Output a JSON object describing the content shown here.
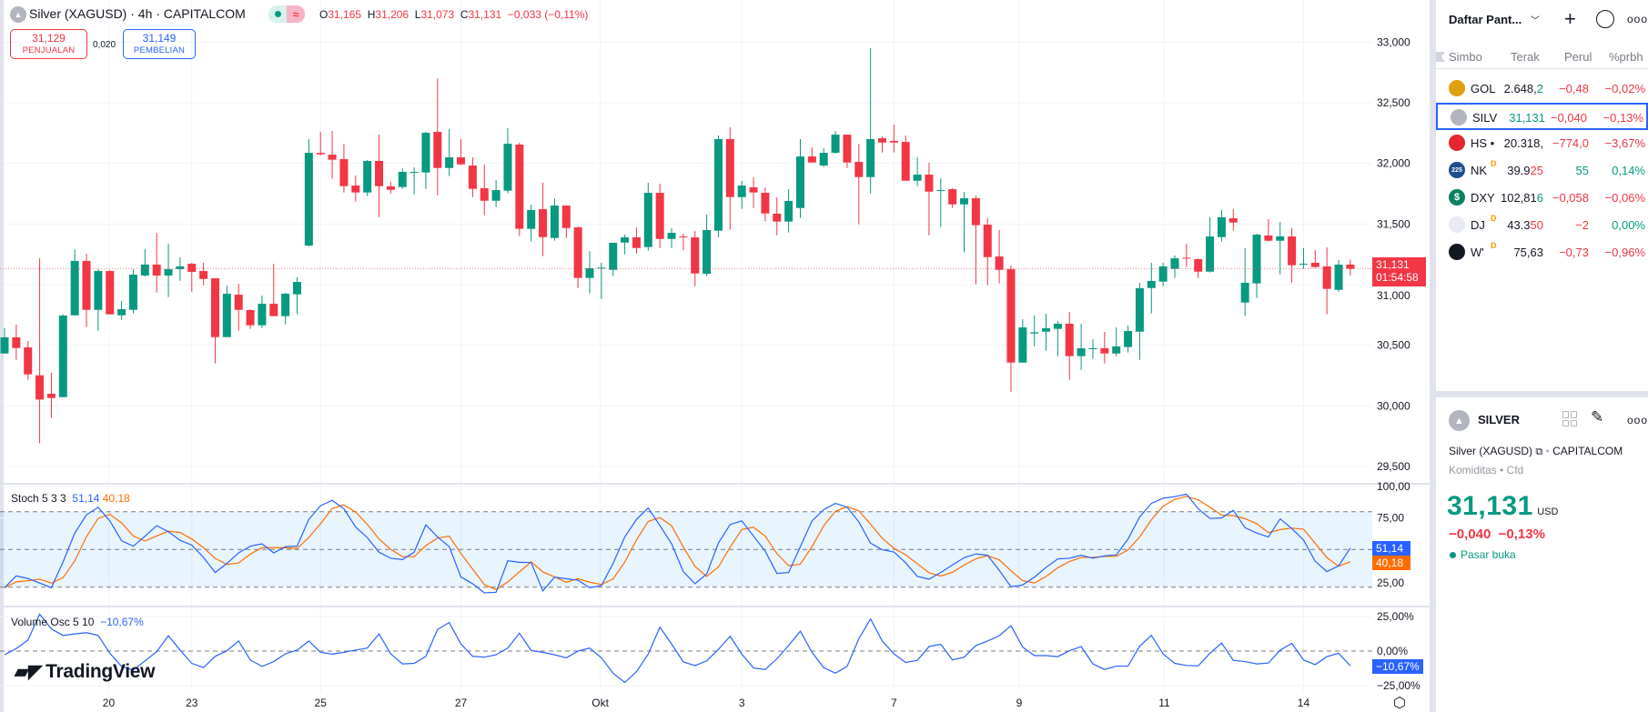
{
  "header": {
    "title": "Silver (XAGUSD) · 4h · CAPITALCOM",
    "market_badge": "≈",
    "ohlc": {
      "o_label": "O",
      "o": "31,165",
      "h_label": "H",
      "h": "31,206",
      "l_label": "L",
      "l": "31,073",
      "c_label": "C",
      "c": "31,131",
      "change": "−0,033 (−0,11%)"
    },
    "sell": {
      "price": "31,129",
      "label": "PENJUALAN"
    },
    "spread": "0,020",
    "buy": {
      "price": "31,149",
      "label": "PEMBELIAN"
    }
  },
  "colors": {
    "up": "#089981",
    "down": "#F23645",
    "k": "#2962FF",
    "d": "#FF6D00",
    "grid": "#F0F3FA"
  },
  "price_axis": {
    "ticks": [
      {
        "v": 33000,
        "t": "33,000"
      },
      {
        "v": 32500,
        "t": "32,500"
      },
      {
        "v": 32000,
        "t": "32,000"
      },
      {
        "v": 31500,
        "t": "31,500"
      },
      {
        "v": 31000,
        "t": "31,000"
      },
      {
        "v": 30500,
        "t": "30,500"
      },
      {
        "v": 30000,
        "t": "30,000"
      },
      {
        "v": 29500,
        "t": "29,500"
      }
    ],
    "last_price": "31,131",
    "countdown": "01:54:58",
    "last_value": 31131
  },
  "stoch": {
    "label": "Stoch 5 3 3",
    "k_value": "51,14",
    "d_value": "40,18",
    "d_period": 3,
    "ticks": [
      {
        "v": 100,
        "t": "100,00"
      },
      {
        "v": 75,
        "t": "75,00"
      },
      {
        "v": 25,
        "t": "25,00"
      }
    ],
    "bands": [
      80,
      50,
      20
    ],
    "k": [
      19.6,
      29,
      26.9,
      23.3,
      19.6,
      40.1,
      63,
      77.5,
      83.5,
      72.7,
      56.9,
      52.6,
      60.5,
      68.9,
      64.1,
      57.3,
      53.4,
      43.7,
      31.7,
      38.9,
      47.3,
      52.6,
      54.5,
      47.3,
      52.2,
      52.6,
      73.9,
      84.7,
      89,
      82.3,
      67.8,
      59.4,
      47.8,
      43,
      42,
      47.8,
      69.5,
      59.9,
      52.2,
      28.1,
      22.8,
      15.5,
      16,
      41,
      39.8,
      39.6,
      17.1,
      28,
      26.8,
      25.6,
      19.6,
      21.3,
      38.9,
      59.9,
      73.9,
      83,
      69,
      54.5,
      32.4,
      22.8,
      30.5,
      55,
      69.8,
      72.7,
      60.6,
      48.6,
      31,
      31.7,
      52.2,
      72.7,
      81.6,
      86.6,
      83.5,
      71.9,
      55,
      49.8,
      48,
      39.4,
      28.6,
      26.4,
      31.7,
      37.7,
      43.5,
      46.4,
      45.4,
      33.4,
      20.4,
      21.8,
      28,
      35.8,
      42.5,
      43,
      45.4,
      43,
      44.9,
      45.7,
      58.2,
      75.8,
      86.6,
      90.7,
      91.9,
      93.9,
      82.3,
      74.6,
      75,
      81.1,
      67.3,
      63,
      59.9,
      74.3,
      66.6,
      57.5,
      40.6,
      32.4,
      37,
      51.14
    ]
  },
  "volosc": {
    "label": "Volume Osc 5 10",
    "value": "−10,67%",
    "ticks": [
      {
        "v": 25,
        "t": "25,00%"
      },
      {
        "v": 0,
        "t": "0,00%"
      },
      {
        "v": -25,
        "t": "−25,00%"
      }
    ],
    "values": [
      -2.7,
      1.8,
      8,
      26.7,
      16,
      11.3,
      12.4,
      13.3,
      11.3,
      -1.6,
      -11.1,
      -13.8,
      -7.1,
      -0.4,
      11.1,
      0.7,
      -8.9,
      -12,
      -3.8,
      0.2,
      7.3,
      -6.4,
      -11.1,
      -7.6,
      -2,
      0.7,
      7.3,
      -0.9,
      -2.2,
      -0.9,
      0.7,
      2.2,
      12.4,
      -2,
      -9.3,
      -8.9,
      -3.8,
      15.6,
      20.7,
      5.1,
      -3.8,
      -4.4,
      -2.7,
      2.2,
      12.9,
      0.4,
      -0.9,
      -2.7,
      -4.9,
      0,
      2.2,
      -4.9,
      -16,
      -22.7,
      -14.9,
      -2.2,
      17.3,
      5.1,
      -7.8,
      -10.5,
      -7.1,
      1.3,
      10.7,
      -2.2,
      -12.2,
      -13.3,
      -5.6,
      4,
      14.4,
      -0.9,
      -12,
      -16,
      -11.1,
      8.9,
      23.3,
      7.3,
      -2,
      -8.2,
      -6.7,
      3.3,
      4.9,
      -6.4,
      -4.4,
      4,
      7.3,
      11.1,
      18.4,
      2.9,
      -3.3,
      -3.3,
      -4,
      0.2,
      3.3,
      -9.3,
      -13.3,
      -10.9,
      -10.9,
      3.6,
      11.3,
      -2,
      -8.9,
      -10.4,
      -10.7,
      -1.6,
      5.8,
      -6.7,
      -7.6,
      -9.3,
      -8.7,
      0.7,
      5.6,
      -6.4,
      -9.8,
      -4,
      -1.6,
      -10.67
    ]
  },
  "time_axis": [
    {
      "i": 8.9,
      "t": "20"
    },
    {
      "i": 16,
      "t": "23"
    },
    {
      "i": 27,
      "t": "25"
    },
    {
      "i": 39,
      "t": "27"
    },
    {
      "i": 50.9,
      "t": "Okt"
    },
    {
      "i": 63,
      "t": "3"
    },
    {
      "i": 76,
      "t": "7"
    },
    {
      "i": 86.7,
      "t": "9"
    },
    {
      "i": 99.1,
      "t": "11"
    },
    {
      "i": 111,
      "t": "14"
    }
  ],
  "branding": "TradingView",
  "candles": [
    [
      30432,
      30640,
      30432,
      30565
    ],
    [
      30565,
      30670,
      30380,
      30477
    ],
    [
      30482,
      30535,
      30215,
      30260
    ],
    [
      30252,
      31217,
      29692,
      30052
    ],
    [
      30100,
      30272,
      29902,
      30065
    ],
    [
      30072,
      30755,
      30072,
      30745
    ],
    [
      30747,
      31292,
      30747,
      31195
    ],
    [
      31195,
      31255,
      30650,
      30792
    ],
    [
      30792,
      31127,
      30620,
      31112
    ],
    [
      31112,
      31120,
      30755,
      30755
    ],
    [
      30747,
      30865,
      30710,
      30797
    ],
    [
      30792,
      31127,
      30762,
      31082
    ],
    [
      31075,
      31292,
      31067,
      31165
    ],
    [
      31165,
      31427,
      30935,
      31075
    ],
    [
      31075,
      31337,
      30897,
      31127
    ],
    [
      31127,
      31225,
      31032,
      31150
    ],
    [
      31172,
      31180,
      30942,
      31105
    ],
    [
      31112,
      31180,
      30995,
      31047
    ],
    [
      31052,
      31052,
      30350,
      30567
    ],
    [
      30567,
      30992,
      30567,
      30925
    ],
    [
      30917,
      31007,
      30620,
      30792
    ],
    [
      30790,
      30797,
      30635,
      30665
    ],
    [
      30665,
      30910,
      30642,
      30842
    ],
    [
      30842,
      31172,
      30740,
      30740
    ],
    [
      30740,
      30932,
      30672,
      30925
    ],
    [
      30920,
      31060,
      30755,
      31022
    ],
    [
      31322,
      32200,
      31315,
      32087
    ],
    [
      32087,
      32260,
      32067,
      32075
    ],
    [
      32072,
      32267,
      31872,
      32030
    ],
    [
      32035,
      32162,
      31760,
      31812
    ],
    [
      31817,
      31900,
      31685,
      31760
    ],
    [
      31760,
      32027,
      31730,
      32020
    ],
    [
      32020,
      32237,
      31557,
      31812
    ],
    [
      31810,
      31847,
      31752,
      31782
    ],
    [
      31805,
      31960,
      31790,
      31930
    ],
    [
      31925,
      31967,
      31745,
      31930
    ],
    [
      31925,
      32260,
      31790,
      32252
    ],
    [
      32260,
      32702,
      31737,
      31962
    ],
    [
      31962,
      32282,
      31895,
      32050
    ],
    [
      32050,
      32200,
      31985,
      31992
    ],
    [
      31982,
      32050,
      31722,
      31790
    ],
    [
      31795,
      31990,
      31572,
      31692
    ],
    [
      31692,
      31862,
      31640,
      31780
    ],
    [
      31775,
      32290,
      31752,
      32162
    ],
    [
      32155,
      32170,
      31400,
      31460
    ],
    [
      31460,
      31660,
      31355,
      31615
    ],
    [
      31622,
      31840,
      31235,
      31392
    ],
    [
      31385,
      31712,
      31362,
      31652
    ],
    [
      31652,
      31652,
      31385,
      31467
    ],
    [
      31472,
      31480,
      30972,
      31055
    ],
    [
      31055,
      31277,
      30927,
      31135
    ],
    [
      31135,
      31180,
      30882,
      31140
    ],
    [
      31122,
      31345,
      31070,
      31345
    ],
    [
      31347,
      31412,
      31250,
      31390
    ],
    [
      31390,
      31472,
      31257,
      31302
    ],
    [
      31310,
      31840,
      31280,
      31757
    ],
    [
      31757,
      31832,
      31302,
      31377
    ],
    [
      31377,
      31465,
      31302,
      31427
    ],
    [
      31397,
      31420,
      31285,
      31392
    ],
    [
      31390,
      31442,
      30987,
      31092
    ],
    [
      31090,
      31577,
      31070,
      31450
    ],
    [
      31445,
      32230,
      31392,
      32200
    ],
    [
      32200,
      32297,
      31452,
      31722
    ],
    [
      31722,
      31855,
      31625,
      31817
    ],
    [
      31802,
      31885,
      31632,
      31760
    ],
    [
      31757,
      31802,
      31520,
      31587
    ],
    [
      31585,
      31720,
      31407,
      31520
    ],
    [
      31520,
      31787,
      31430,
      31690
    ],
    [
      31632,
      32200,
      31550,
      32057
    ],
    [
      32057,
      32132,
      32007,
      32007
    ],
    [
      31982,
      32125,
      31970,
      32087
    ],
    [
      32087,
      32267,
      32080,
      32237
    ],
    [
      32237,
      32237,
      31962,
      32007
    ],
    [
      32012,
      32162,
      31497,
      31887
    ],
    [
      31887,
      32950,
      31752,
      32200
    ],
    [
      32207,
      32222,
      32090,
      32172
    ],
    [
      32185,
      32320,
      32090,
      32172
    ],
    [
      32177,
      32230,
      31857,
      31857
    ],
    [
      31857,
      32050,
      31812,
      31907
    ],
    [
      31907,
      32005,
      31407,
      31767
    ],
    [
      31775,
      31877,
      31475,
      31780
    ],
    [
      31787,
      31795,
      31632,
      31662
    ],
    [
      31662,
      31765,
      31265,
      31712
    ],
    [
      31712,
      31735,
      31002,
      31490
    ],
    [
      31495,
      31547,
      30995,
      31227
    ],
    [
      31232,
      31450,
      31010,
      31122
    ],
    [
      31127,
      31157,
      30117,
      30357
    ],
    [
      30357,
      30715,
      30357,
      30647
    ],
    [
      30597,
      30745,
      30492,
      30607
    ],
    [
      30612,
      30760,
      30455,
      30640
    ],
    [
      30635,
      30700,
      30410,
      30677
    ],
    [
      30677,
      30775,
      30215,
      30410
    ],
    [
      30410,
      30677,
      30297,
      30475
    ],
    [
      30470,
      30550,
      30387,
      30475
    ],
    [
      30475,
      30610,
      30350,
      30432
    ],
    [
      30432,
      30647,
      30410,
      30490
    ],
    [
      30485,
      30662,
      30440,
      30617
    ],
    [
      30612,
      31015,
      30380,
      30970
    ],
    [
      30972,
      31180,
      30762,
      31030
    ],
    [
      31025,
      31180,
      30987,
      31150
    ],
    [
      31130,
      31240,
      31055,
      31217
    ],
    [
      31222,
      31337,
      31145,
      31220
    ],
    [
      31210,
      31217,
      31055,
      31107
    ],
    [
      31107,
      31555,
      31100,
      31397
    ],
    [
      31392,
      31615,
      31355,
      31555
    ],
    [
      31547,
      31622,
      31445,
      31512
    ],
    [
      30852,
      31300,
      30740,
      31015
    ],
    [
      31010,
      31420,
      30890,
      31412
    ],
    [
      31405,
      31540,
      31355,
      31362
    ],
    [
      31362,
      31517,
      31085,
      31397
    ],
    [
      31397,
      31465,
      31017,
      31160
    ],
    [
      31167,
      31300,
      31130,
      31172
    ],
    [
      31180,
      31285,
      31137,
      31145
    ],
    [
      31150,
      31307,
      30755,
      30965
    ],
    [
      30957,
      31202,
      30942,
      31165
    ],
    [
      31165,
      31206,
      31073,
      31131
    ]
  ],
  "watchlist": {
    "title": "Daftar Pant...",
    "columns": [
      "Simbo",
      "Terak",
      "Perul",
      "%prbh"
    ],
    "rows": [
      {
        "sym": "GOL",
        "flag": "",
        "price": "2.648,",
        "tail": "2",
        "tail_dir": "up",
        "chg": "−0,48",
        "pct": "−0,02%",
        "dir": "down",
        "icon_color": "#E0A10E",
        "icon": "gold-bar-icon",
        "icon_text": ""
      },
      {
        "sym": "SILVI",
        "flag": "",
        "price": "",
        "tail": "31,131",
        "tail_dir": "up",
        "chg": "−0,040",
        "pct": "−0,13%",
        "dir": "down",
        "icon_color": "#B2B5BE",
        "icon": "silver-bar-icon",
        "icon_text": "",
        "selected": true
      },
      {
        "sym": "HS •",
        "flag": "",
        "price": "20.318,",
        "tail": "",
        "tail_dir": "",
        "chg": "−774,0",
        "pct": "−3,67%",
        "dir": "down",
        "icon_color": "#E3262F",
        "icon": "hang-seng-icon",
        "icon_text": ""
      },
      {
        "sym": "NK",
        "flag": "D",
        "price": "39.9",
        "tail": "25",
        "tail_dir": "down",
        "chg": "55",
        "pct": "0,14%",
        "dir": "up",
        "icon_color": "#1E4C8C",
        "icon": "nikkei-icon",
        "icon_text": "225"
      },
      {
        "sym": "DXY",
        "flag": "",
        "price": "102,81",
        "tail": "6",
        "tail_dir": "up",
        "chg": "−0,058",
        "pct": "−0,06%",
        "dir": "down",
        "icon_color": "#0B8162",
        "icon": "dollar-icon",
        "icon_text": "$"
      },
      {
        "sym": "DJ",
        "flag": "D",
        "price": "43.3",
        "tail": "50",
        "tail_dir": "down",
        "chg": "−2",
        "pct": "0,00%",
        "dir": "down",
        "pct_dir": "up",
        "icon_color": "#E8EAF6",
        "icon": "us-flag-icon",
        "icon_text": ""
      },
      {
        "sym": "W'",
        "flag": "D",
        "price": "75,63",
        "tail": "",
        "tail_dir": "",
        "chg": "−0,73",
        "pct": "−0,96%",
        "dir": "down",
        "icon_color": "#131722",
        "icon": "oil-drop-icon",
        "icon_text": ""
      }
    ]
  },
  "details": {
    "symbol": "SILVER",
    "name": "Silver (XAGUSD)",
    "exchange": "CAPITALCOM",
    "type": "Komiditas • Cfd",
    "price": "31,131",
    "currency": "USD",
    "change": "−0,040",
    "change_pct": "−0,13%",
    "status": "Pasar buka"
  }
}
